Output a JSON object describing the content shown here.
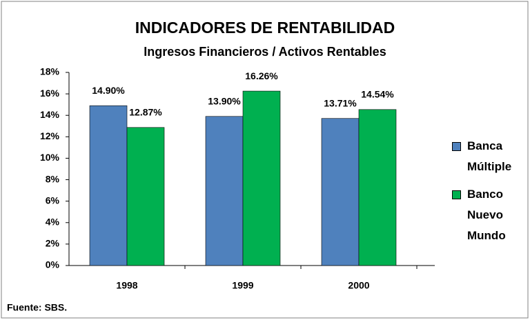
{
  "chart_data": {
    "type": "bar",
    "title": "INDICADORES DE RENTABILIDAD",
    "subtitle": "Ingresos Financieros / Activos Rentables",
    "categories": [
      "1998",
      "1999",
      "2000"
    ],
    "series": [
      {
        "name": "Banca Múltiple",
        "color": "#4f81bd",
        "values": [
          14.9,
          13.9,
          13.71
        ],
        "value_labels": [
          "14.90%",
          "13.90%",
          "13.71%"
        ]
      },
      {
        "name": "Banco Nuevo Mundo",
        "color": "#00b050",
        "values": [
          12.87,
          16.26,
          14.54
        ],
        "value_labels": [
          "12.87%",
          "16.26%",
          "14.54%"
        ]
      }
    ],
    "ylim": [
      0,
      18
    ],
    "yticks": [
      {
        "value": 0,
        "label": "0%"
      },
      {
        "value": 2,
        "label": "2%"
      },
      {
        "value": 4,
        "label": "4%"
      },
      {
        "value": 6,
        "label": "6%"
      },
      {
        "value": 8,
        "label": "8%"
      },
      {
        "value": 10,
        "label": "10%"
      },
      {
        "value": 12,
        "label": "12%"
      },
      {
        "value": 14,
        "label": "14%"
      },
      {
        "value": 16,
        "label": "16%"
      },
      {
        "value": 18,
        "label": "18%"
      }
    ],
    "grid": false,
    "legend": "right",
    "source": "Fuente: SBS."
  }
}
